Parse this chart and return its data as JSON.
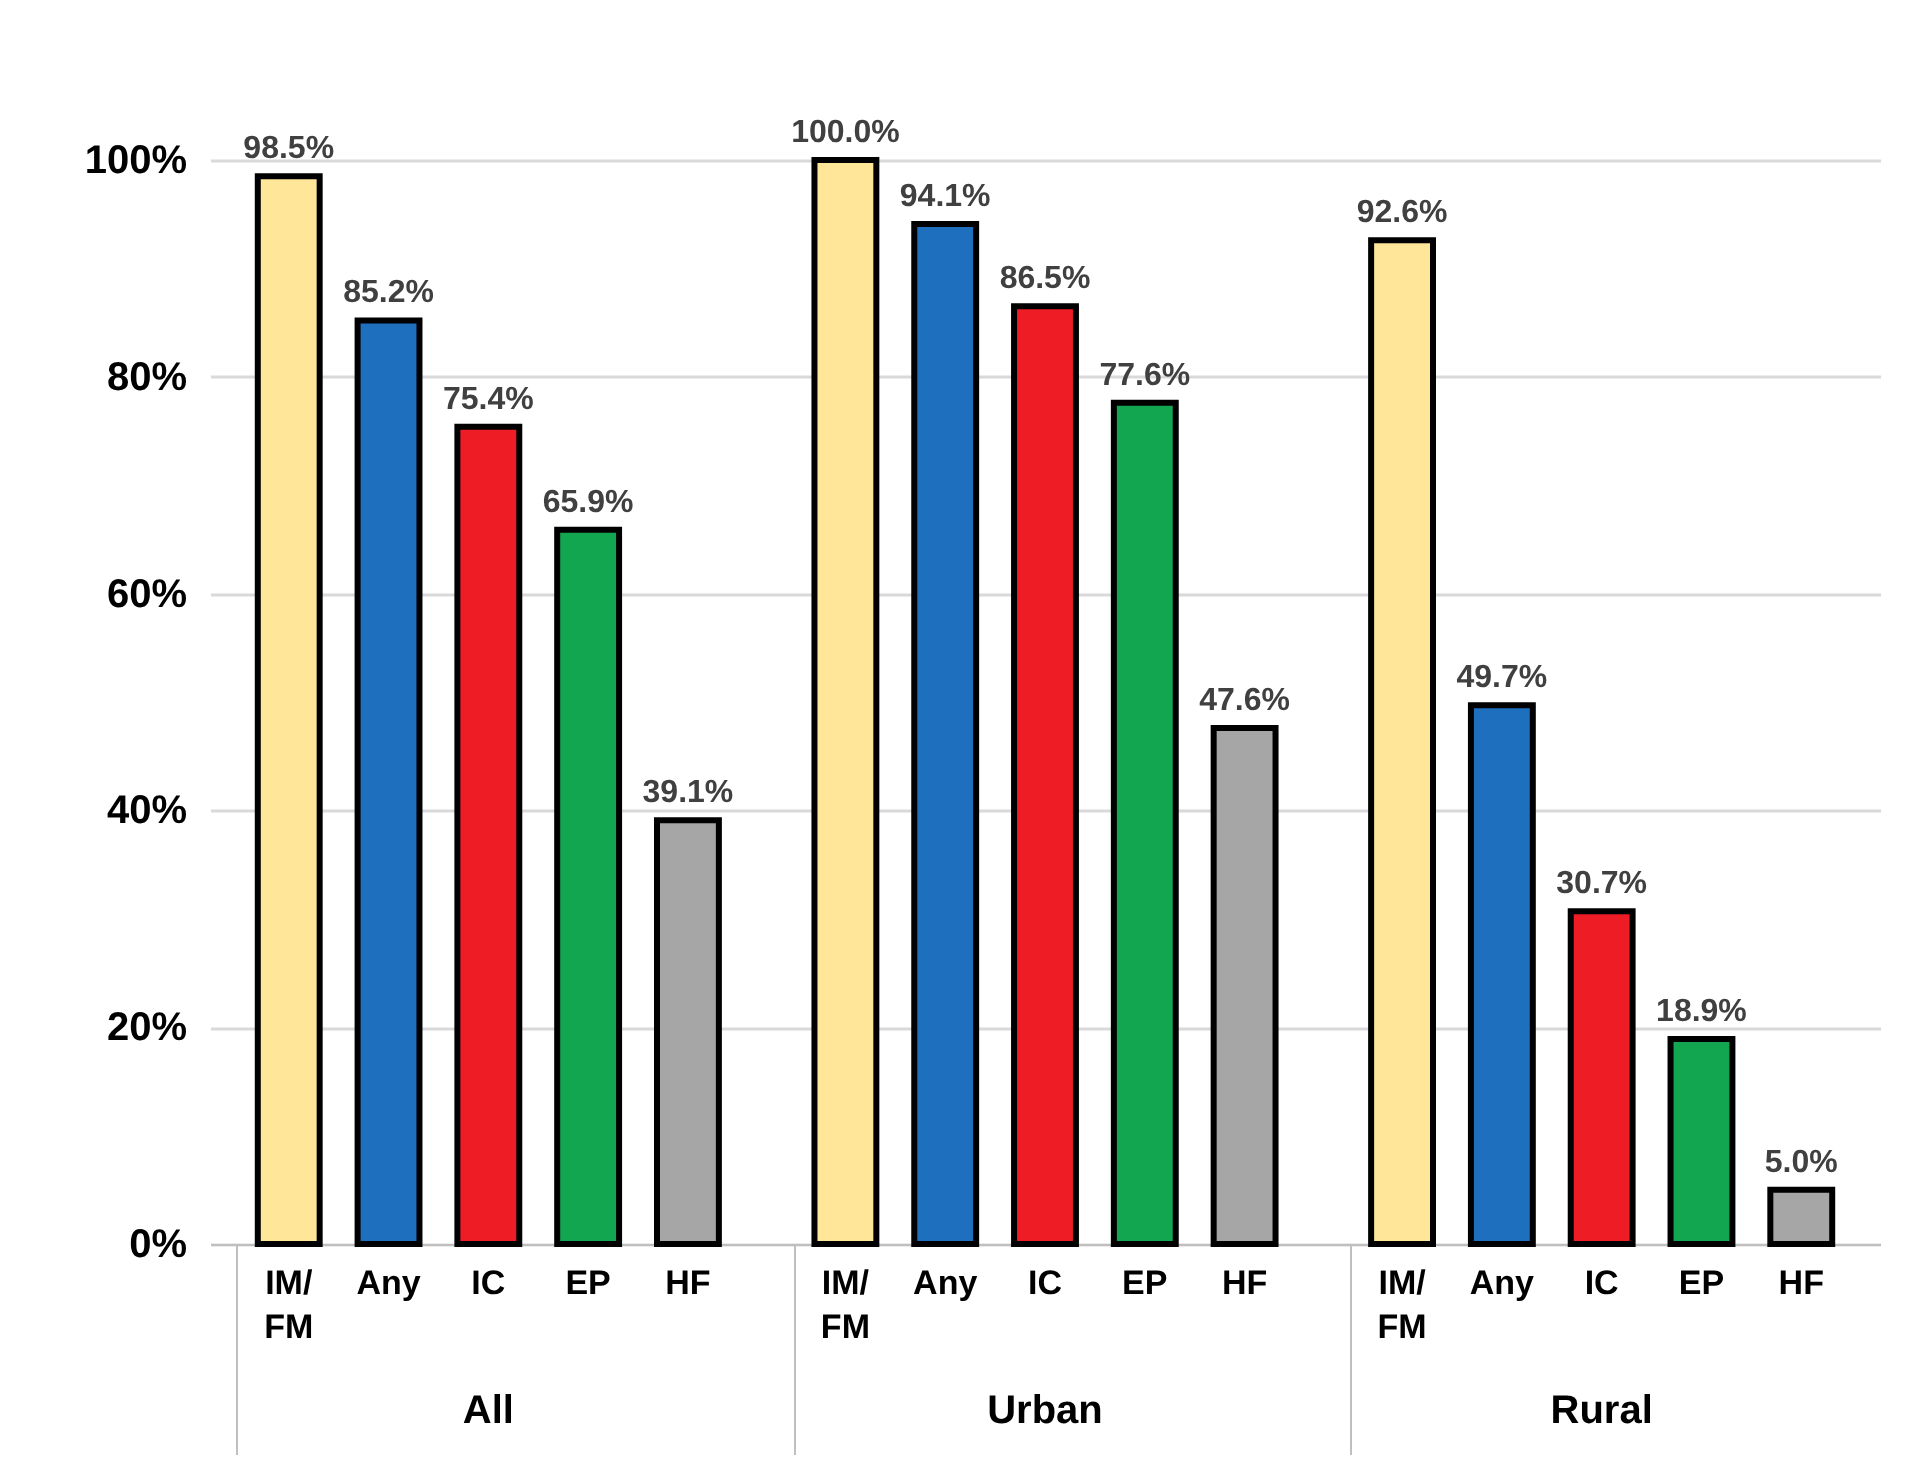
{
  "chart_data": {
    "type": "bar",
    "categories": [
      "All",
      "Urban",
      "Rural"
    ],
    "series": [
      {
        "name": "IM/FM",
        "color": "#ffe699",
        "values": [
          98.5,
          100.0,
          92.6
        ],
        "value_labels": [
          "98.5%",
          "100.0%",
          "92.6%"
        ]
      },
      {
        "name": "Any",
        "color": "#1f6fbf",
        "values": [
          85.2,
          94.1,
          49.7
        ],
        "value_labels": [
          "85.2%",
          "94.1%",
          "49.7%"
        ]
      },
      {
        "name": "IC",
        "color": "#ee1c25",
        "values": [
          75.4,
          86.5,
          30.7
        ],
        "value_labels": [
          "75.4%",
          "86.5%",
          "30.7%"
        ]
      },
      {
        "name": "EP",
        "color": "#12a650",
        "values": [
          65.9,
          77.6,
          18.9
        ],
        "value_labels": [
          "65.9%",
          "77.6%",
          "18.9%"
        ]
      },
      {
        "name": "HF",
        "color": "#a6a6a6",
        "values": [
          39.1,
          47.6,
          5.0
        ],
        "value_labels": [
          "39.1%",
          "47.6%",
          "5.0%"
        ]
      }
    ],
    "ylim": [
      0,
      100
    ],
    "yticks": [
      {
        "value": 0,
        "label": "0%"
      },
      {
        "value": 20,
        "label": "20%"
      },
      {
        "value": 40,
        "label": "40%"
      },
      {
        "value": 60,
        "label": "60%"
      },
      {
        "value": 80,
        "label": "80%"
      },
      {
        "value": 100,
        "label": "100%"
      }
    ],
    "grid": "y",
    "legend": false
  }
}
